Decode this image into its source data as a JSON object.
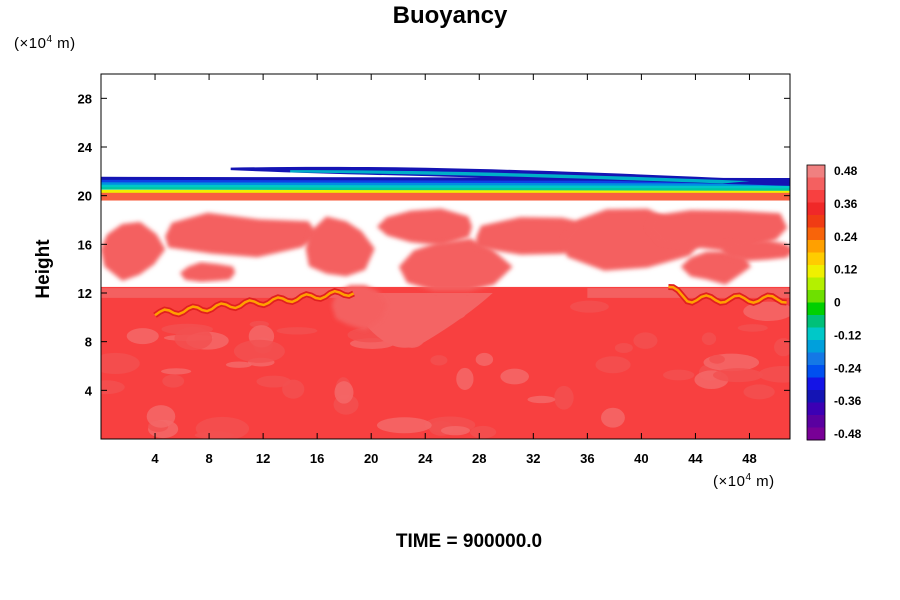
{
  "chart_data": {
    "type": "heatmap",
    "title": "Buoyancy",
    "ylabel": "Height",
    "xlabel": "",
    "x_unit": {
      "prefix": "(×10",
      "exp": "4",
      "suffix": " m)"
    },
    "y_unit": {
      "prefix": "(×10",
      "exp": "4",
      "suffix": " m)"
    },
    "xlim": [
      0,
      51
    ],
    "ylim": [
      0,
      30
    ],
    "x_ticks": [
      4,
      8,
      12,
      16,
      20,
      24,
      28,
      32,
      36,
      40,
      44,
      48
    ],
    "y_ticks": [
      4,
      8,
      12,
      16,
      20,
      24,
      28
    ],
    "colorbar": {
      "min": -0.48,
      "max": 0.48,
      "labels": [
        "0.48",
        "0.36",
        "0.24",
        "0.12",
        "0",
        "-0.12",
        "-0.24",
        "-0.36",
        "-0.48"
      ],
      "colors": [
        "#f08080",
        "#f46060",
        "#f84040",
        "#f02828",
        "#f03c14",
        "#f8640a",
        "#ffa000",
        "#ffcc00",
        "#f0f000",
        "#b4f000",
        "#6ee000",
        "#00d000",
        "#00c078",
        "#00c8c8",
        "#00a0dc",
        "#1478e6",
        "#0050f0",
        "#1414e6",
        "#1414b4",
        "#3c00b4",
        "#5a00a0",
        "#780096"
      ]
    },
    "regions": [
      {
        "name": "stratosphere-upper-band",
        "value": -0.3,
        "x": [
          0,
          51
        ],
        "y": [
          20.4,
          21.2
        ]
      },
      {
        "name": "stratosphere-lower-band",
        "value": 0.12,
        "x": [
          0,
          51
        ],
        "y": [
          19.6,
          20.4
        ]
      },
      {
        "name": "upper-negative-streak",
        "value": -0.4,
        "x": [
          9.6,
          51
        ],
        "y": [
          21.2,
          22.3
        ]
      },
      {
        "name": "upper-troposphere-patches",
        "value": 0.42,
        "x": [
          0,
          51
        ],
        "y": [
          12,
          19
        ]
      },
      {
        "name": "lower-troposphere",
        "value": 0.38,
        "x": [
          0,
          51
        ],
        "y": [
          0,
          12
        ]
      },
      {
        "name": "convective-front-left",
        "value": 0.2,
        "x": [
          4,
          19
        ],
        "y": [
          10,
          12.5
        ]
      },
      {
        "name": "convective-front-right",
        "value": 0.2,
        "x": [
          42,
          51
        ],
        "y": [
          10.5,
          12.5
        ]
      }
    ]
  },
  "time_label": "TIME = 900000.0"
}
